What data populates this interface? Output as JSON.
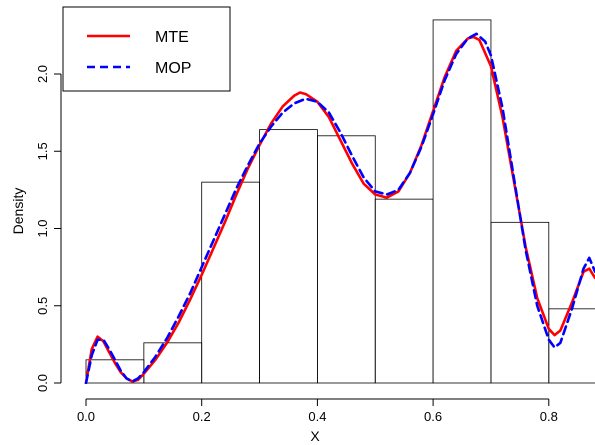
{
  "chart_data": {
    "type": "histogram",
    "xlabel": "X",
    "ylabel": "Density",
    "xlim": [
      0.0,
      0.88
    ],
    "ylim": [
      0.0,
      2.35
    ],
    "x_ticks": [
      0.0,
      0.2,
      0.4,
      0.6,
      0.8
    ],
    "x_tick_labels": [
      "0.0",
      "0.2",
      "0.4",
      "0.6",
      "0.8"
    ],
    "y_ticks": [
      0.0,
      0.5,
      1.0,
      1.5,
      2.0
    ],
    "y_tick_labels": [
      "0.0",
      "0.5",
      "1.0",
      "1.5",
      "2.0"
    ],
    "grid": false,
    "legend_position": "top-left",
    "histogram": {
      "bins": [
        {
          "x0": 0.0,
          "x1": 0.1,
          "density": 0.15
        },
        {
          "x0": 0.1,
          "x1": 0.2,
          "density": 0.26
        },
        {
          "x0": 0.2,
          "x1": 0.3,
          "density": 1.3
        },
        {
          "x0": 0.3,
          "x1": 0.4,
          "density": 1.64
        },
        {
          "x0": 0.4,
          "x1": 0.5,
          "density": 1.6
        },
        {
          "x0": 0.5,
          "x1": 0.6,
          "density": 1.19
        },
        {
          "x0": 0.6,
          "x1": 0.7,
          "density": 2.35
        },
        {
          "x0": 0.7,
          "x1": 0.8,
          "density": 1.04
        },
        {
          "x0": 0.8,
          "x1": 0.9,
          "density": 0.48
        }
      ]
    },
    "series": [
      {
        "name": "MTE",
        "color": "#ff0000",
        "line_style": "solid",
        "points": [
          [
            0.0,
            0.0
          ],
          [
            0.01,
            0.22
          ],
          [
            0.02,
            0.3
          ],
          [
            0.03,
            0.27
          ],
          [
            0.04,
            0.2
          ],
          [
            0.05,
            0.13
          ],
          [
            0.06,
            0.07
          ],
          [
            0.07,
            0.03
          ],
          [
            0.08,
            0.01
          ],
          [
            0.09,
            0.02
          ],
          [
            0.1,
            0.06
          ],
          [
            0.12,
            0.15
          ],
          [
            0.14,
            0.26
          ],
          [
            0.16,
            0.39
          ],
          [
            0.18,
            0.54
          ],
          [
            0.2,
            0.7
          ],
          [
            0.22,
            0.87
          ],
          [
            0.24,
            1.04
          ],
          [
            0.26,
            1.22
          ],
          [
            0.28,
            1.39
          ],
          [
            0.3,
            1.54
          ],
          [
            0.32,
            1.68
          ],
          [
            0.34,
            1.79
          ],
          [
            0.36,
            1.86
          ],
          [
            0.37,
            1.88
          ],
          [
            0.38,
            1.87
          ],
          [
            0.4,
            1.82
          ],
          [
            0.42,
            1.72
          ],
          [
            0.44,
            1.57
          ],
          [
            0.46,
            1.42
          ],
          [
            0.48,
            1.29
          ],
          [
            0.5,
            1.22
          ],
          [
            0.52,
            1.2
          ],
          [
            0.54,
            1.24
          ],
          [
            0.56,
            1.36
          ],
          [
            0.58,
            1.54
          ],
          [
            0.6,
            1.76
          ],
          [
            0.62,
            1.98
          ],
          [
            0.64,
            2.15
          ],
          [
            0.66,
            2.23
          ],
          [
            0.67,
            2.24
          ],
          [
            0.68,
            2.22
          ],
          [
            0.7,
            2.05
          ],
          [
            0.72,
            1.72
          ],
          [
            0.74,
            1.3
          ],
          [
            0.76,
            0.88
          ],
          [
            0.78,
            0.55
          ],
          [
            0.8,
            0.35
          ],
          [
            0.81,
            0.31
          ],
          [
            0.82,
            0.34
          ],
          [
            0.84,
            0.52
          ],
          [
            0.86,
            0.72
          ],
          [
            0.87,
            0.74
          ],
          [
            0.88,
            0.68
          ]
        ]
      },
      {
        "name": "MOP",
        "color": "#0000ff",
        "line_style": "dashed",
        "points": [
          [
            0.0,
            0.0
          ],
          [
            0.01,
            0.18
          ],
          [
            0.02,
            0.28
          ],
          [
            0.03,
            0.28
          ],
          [
            0.04,
            0.22
          ],
          [
            0.05,
            0.15
          ],
          [
            0.06,
            0.08
          ],
          [
            0.07,
            0.03
          ],
          [
            0.08,
            0.01
          ],
          [
            0.09,
            0.03
          ],
          [
            0.1,
            0.07
          ],
          [
            0.12,
            0.17
          ],
          [
            0.14,
            0.29
          ],
          [
            0.16,
            0.43
          ],
          [
            0.18,
            0.58
          ],
          [
            0.2,
            0.75
          ],
          [
            0.22,
            0.92
          ],
          [
            0.24,
            1.09
          ],
          [
            0.26,
            1.26
          ],
          [
            0.28,
            1.41
          ],
          [
            0.3,
            1.55
          ],
          [
            0.32,
            1.66
          ],
          [
            0.34,
            1.75
          ],
          [
            0.36,
            1.81
          ],
          [
            0.38,
            1.84
          ],
          [
            0.4,
            1.82
          ],
          [
            0.42,
            1.75
          ],
          [
            0.44,
            1.62
          ],
          [
            0.46,
            1.47
          ],
          [
            0.48,
            1.33
          ],
          [
            0.5,
            1.24
          ],
          [
            0.52,
            1.22
          ],
          [
            0.54,
            1.25
          ],
          [
            0.56,
            1.36
          ],
          [
            0.58,
            1.53
          ],
          [
            0.6,
            1.74
          ],
          [
            0.62,
            1.96
          ],
          [
            0.64,
            2.13
          ],
          [
            0.66,
            2.23
          ],
          [
            0.675,
            2.26
          ],
          [
            0.69,
            2.21
          ],
          [
            0.7,
            2.12
          ],
          [
            0.72,
            1.78
          ],
          [
            0.74,
            1.32
          ],
          [
            0.76,
            0.86
          ],
          [
            0.78,
            0.5
          ],
          [
            0.8,
            0.28
          ],
          [
            0.81,
            0.23
          ],
          [
            0.82,
            0.26
          ],
          [
            0.84,
            0.48
          ],
          [
            0.86,
            0.74
          ],
          [
            0.87,
            0.81
          ],
          [
            0.88,
            0.72
          ]
        ]
      }
    ]
  }
}
